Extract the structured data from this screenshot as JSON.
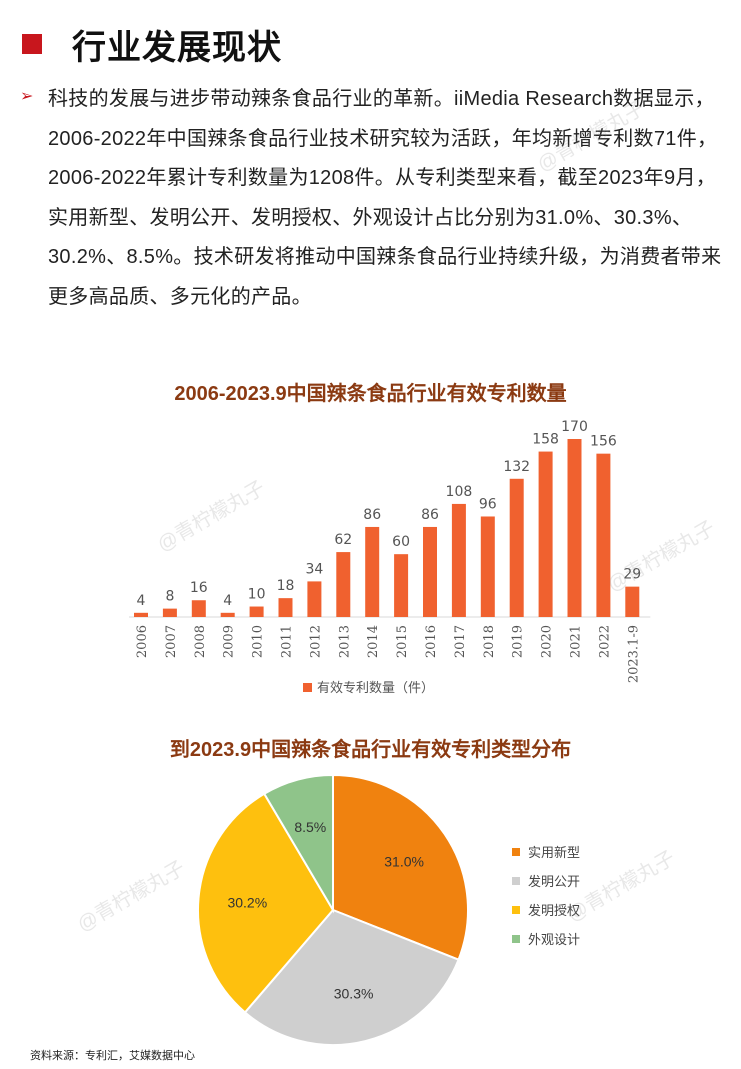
{
  "header": {
    "title": "行业发展现状"
  },
  "intro": {
    "bullet_icon": "arrow-right-icon",
    "text": "科技的发展与进步带动辣条食品行业的革新。iiMedia Research数据显示，2006-2022年中国辣条食品行业技术研究较为活跃，年均新增专利数71件，2006-2022年累计专利数量为1208件。从专利类型来看，截至2023年9月，实用新型、发明公开、发明授权、外观设计占比分别为31.0%、30.3%、30.2%、8.5%。技术研发将推动中国辣条食品行业持续升级，为消费者带来更多高品质、多元化的产品。"
  },
  "colors": {
    "accent": "#c8161d",
    "title": "#8b3a12",
    "bar": "#f0612f"
  },
  "watermark": "@青柠檬丸子",
  "chart_data": [
    {
      "type": "bar",
      "title": "2006-2023.9中国辣条食品行业有效专利数量",
      "categories": [
        "2006",
        "2007",
        "2008",
        "2009",
        "2010",
        "2011",
        "2012",
        "2013",
        "2014",
        "2015",
        "2016",
        "2017",
        "2018",
        "2019",
        "2020",
        "2021",
        "2022",
        "2023.1-9"
      ],
      "series": [
        {
          "name": "有效专利数量（件）",
          "values": [
            4,
            8,
            16,
            4,
            10,
            18,
            34,
            62,
            86,
            60,
            86,
            108,
            96,
            132,
            158,
            170,
            156,
            29
          ],
          "color": "#f0612f"
        }
      ],
      "ylim": [
        0,
        170
      ],
      "grid": false,
      "legend": "bottom"
    },
    {
      "type": "pie",
      "title": "到2023.9中国辣条食品行业有效专利类型分布",
      "slices": [
        {
          "label": "实用新型",
          "value": 31.0,
          "display": "31.0%",
          "color": "#f0820f"
        },
        {
          "label": "发明公开",
          "value": 30.3,
          "display": "30.3%",
          "color": "#cfcfcf"
        },
        {
          "label": "发明授权",
          "value": 30.2,
          "display": "30.2%",
          "color": "#fec00e"
        },
        {
          "label": "外观设计",
          "value": 8.5,
          "display": "8.5%",
          "color": "#8fc48a"
        }
      ],
      "legend": "right"
    }
  ],
  "source": "资料来源：专利汇，艾媒数据中心"
}
